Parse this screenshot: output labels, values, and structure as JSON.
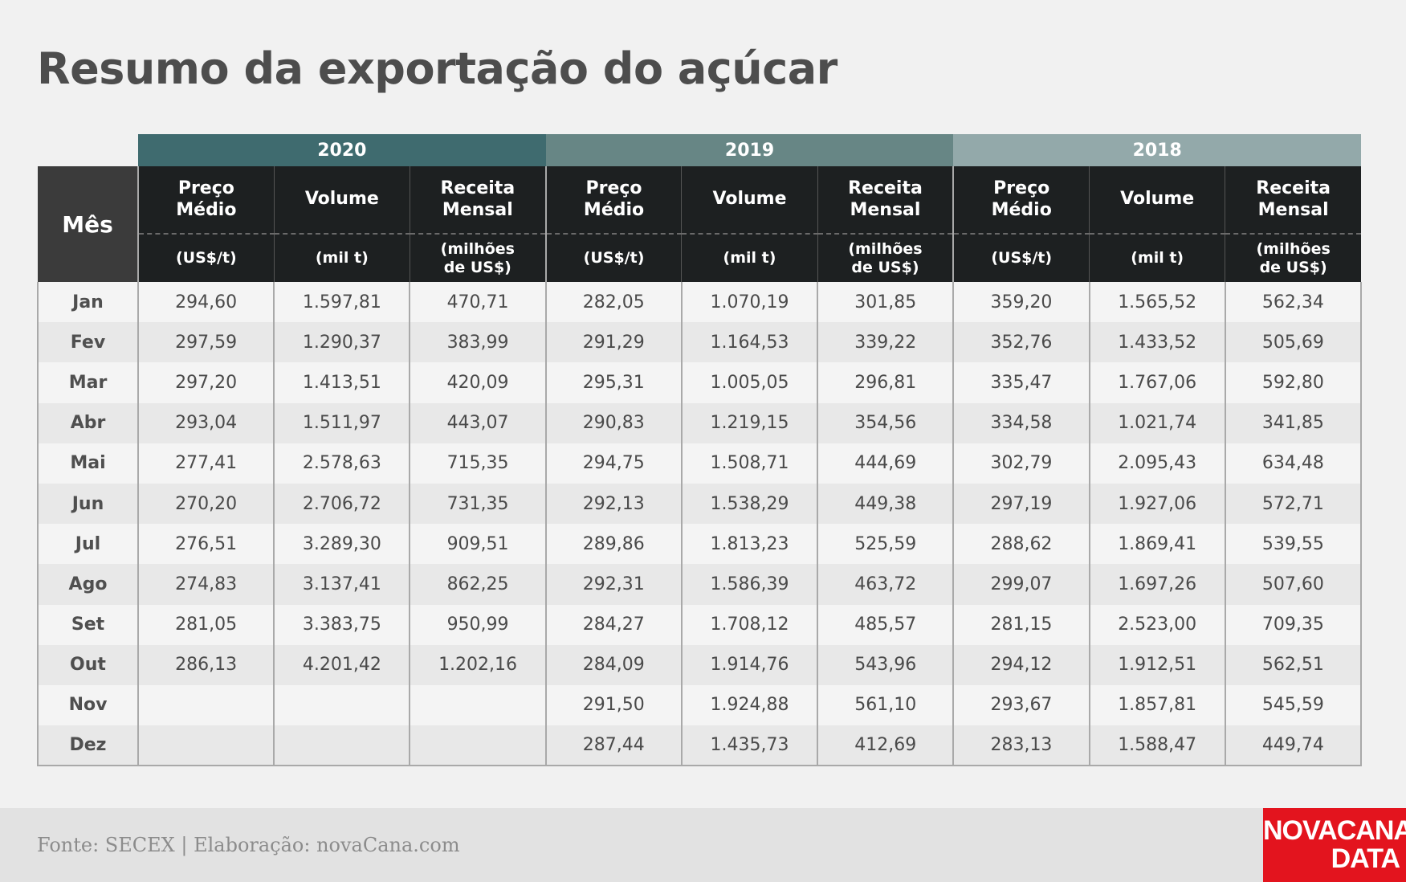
{
  "title": "Resumo da exportação do açúcar",
  "source": "Fonte: SECEX | Elaboração: novaCana.com",
  "logo": {
    "line1": "NOVACANA",
    "line2": "DATA"
  },
  "colors": {
    "y2020": "#3f6b6f",
    "y2019": "#678685",
    "y2018": "#93a9aa",
    "header_dark": "#1d2021",
    "logo_red": "#e3141e"
  },
  "chart_data": {
    "type": "table",
    "title": "Resumo da exportação do açúcar",
    "row_header": "Mês",
    "years": [
      "2020",
      "2019",
      "2018"
    ],
    "columns": [
      {
        "name_l1": "Preço",
        "name_l2": "Médio",
        "unit_l1": "(US$/t)",
        "unit_l2": ""
      },
      {
        "name_l1": "Volume",
        "name_l2": "",
        "unit_l1": "(mil t)",
        "unit_l2": ""
      },
      {
        "name_l1": "Receita",
        "name_l2": "Mensal",
        "unit_l1": "(milhões",
        "unit_l2": "de US$)"
      }
    ],
    "rows": [
      {
        "month": "Jan",
        "values": [
          "294,60",
          "1.597,81",
          "470,71",
          "282,05",
          "1.070,19",
          "301,85",
          "359,20",
          "1.565,52",
          "562,34"
        ]
      },
      {
        "month": "Fev",
        "values": [
          "297,59",
          "1.290,37",
          "383,99",
          "291,29",
          "1.164,53",
          "339,22",
          "352,76",
          "1.433,52",
          "505,69"
        ]
      },
      {
        "month": "Mar",
        "values": [
          "297,20",
          "1.413,51",
          "420,09",
          "295,31",
          "1.005,05",
          "296,81",
          "335,47",
          "1.767,06",
          "592,80"
        ]
      },
      {
        "month": "Abr",
        "values": [
          "293,04",
          "1.511,97",
          "443,07",
          "290,83",
          "1.219,15",
          "354,56",
          "334,58",
          "1.021,74",
          "341,85"
        ]
      },
      {
        "month": "Mai",
        "values": [
          "277,41",
          "2.578,63",
          "715,35",
          "294,75",
          "1.508,71",
          "444,69",
          "302,79",
          "2.095,43",
          "634,48"
        ]
      },
      {
        "month": "Jun",
        "values": [
          "270,20",
          "2.706,72",
          "731,35",
          "292,13",
          "1.538,29",
          "449,38",
          "297,19",
          "1.927,06",
          "572,71"
        ]
      },
      {
        "month": "Jul",
        "values": [
          "276,51",
          "3.289,30",
          "909,51",
          "289,86",
          "1.813,23",
          "525,59",
          "288,62",
          "1.869,41",
          "539,55"
        ]
      },
      {
        "month": "Ago",
        "values": [
          "274,83",
          "3.137,41",
          "862,25",
          "292,31",
          "1.586,39",
          "463,72",
          "299,07",
          "1.697,26",
          "507,60"
        ]
      },
      {
        "month": "Set",
        "values": [
          "281,05",
          "3.383,75",
          "950,99",
          "284,27",
          "1.708,12",
          "485,57",
          "281,15",
          "2.523,00",
          "709,35"
        ]
      },
      {
        "month": "Out",
        "values": [
          "286,13",
          "4.201,42",
          "1.202,16",
          "284,09",
          "1.914,76",
          "543,96",
          "294,12",
          "1.912,51",
          "562,51"
        ]
      },
      {
        "month": "Nov",
        "values": [
          "",
          "",
          "",
          "291,50",
          "1.924,88",
          "561,10",
          "293,67",
          "1.857,81",
          "545,59"
        ]
      },
      {
        "month": "Dez",
        "values": [
          "",
          "",
          "",
          "287,44",
          "1.435,73",
          "412,69",
          "283,13",
          "1.588,47",
          "449,74"
        ]
      }
    ]
  }
}
